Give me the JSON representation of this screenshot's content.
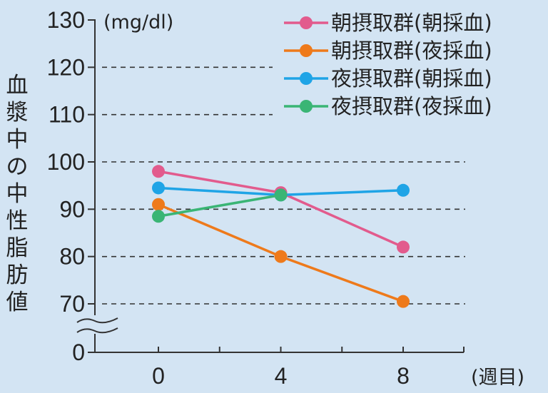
{
  "chart_data": {
    "type": "line",
    "unit": "(mg/dl)",
    "ylabel": "血漿中の中性脂肪値",
    "xlabel": "(週目)",
    "x": [
      0,
      4,
      8
    ],
    "x_ticks": [
      "0",
      "4",
      "8"
    ],
    "y_ticks": [
      "130",
      "120",
      "110",
      "100",
      "90",
      "80",
      "70",
      "0"
    ],
    "ylim": [
      0,
      130
    ],
    "axis_break": true,
    "grid": "dashed",
    "legend_position": "top-right",
    "series": [
      {
        "name": "朝摂取群(朝採血)",
        "color": "#e25b8d",
        "values": [
          98,
          93.5,
          82
        ]
      },
      {
        "name": "朝摂取群(夜採血)",
        "color": "#ee7a1b",
        "values": [
          91,
          80,
          70.5
        ]
      },
      {
        "name": "夜摂取群(朝採血)",
        "color": "#1fa4e6",
        "values": [
          94.5,
          93,
          94
        ]
      },
      {
        "name": "夜摂取群(夜採血)",
        "color": "#3ab575",
        "values": [
          88.5,
          93,
          null
        ]
      }
    ]
  }
}
